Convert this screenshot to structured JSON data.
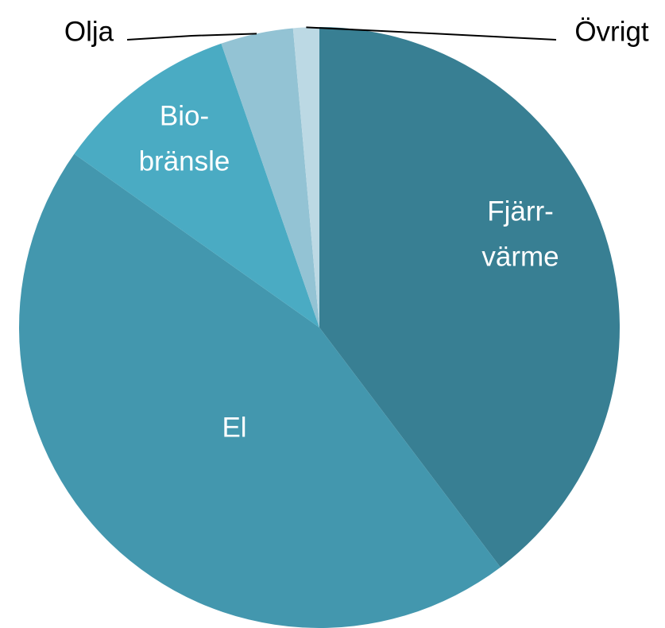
{
  "chart_data": {
    "type": "pie",
    "categories": [
      [
        "Fjärr-",
        "värme"
      ],
      [
        "El"
      ],
      [
        "Bio-",
        "bränsle"
      ],
      [
        "Olja"
      ],
      [
        "Övrigt"
      ]
    ],
    "values": [
      39.7,
      45.1,
      9.9,
      3.9,
      1.4
    ],
    "colors": [
      "#387f93",
      "#4397ae",
      "#4aabc3",
      "#93c3d4",
      "#bcd9e4"
    ]
  }
}
